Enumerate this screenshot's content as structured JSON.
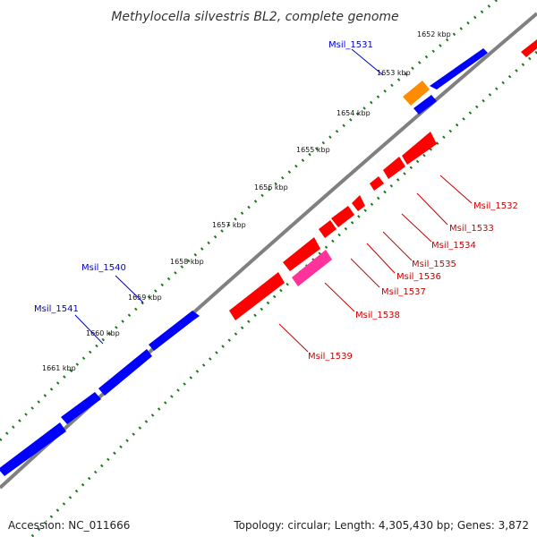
{
  "title": "Methylocella silvestris BL2, complete genome",
  "colors": {
    "background": "#ffffff",
    "backbone": "#808080",
    "ticks": "#1a7a1a",
    "forward_gene": "#0000ff",
    "reverse_gene": "#ff0000",
    "orange_gene": "#ff8c00",
    "pink_gene": "#ff3399",
    "label_blue": "#0000cc",
    "label_red": "#cc0000"
  },
  "kbp_labels": [
    "1652 kbp",
    "1653 kbp",
    "1654 kbp",
    "1655 kbp",
    "1656 kbp",
    "1657 kbp",
    "1658 kbp",
    "1659 kbp",
    "1660 kbp",
    "1661 kbp"
  ],
  "gene_labels": {
    "blue": [
      "Msil_1531",
      "Msil_1540",
      "Msil_1541"
    ],
    "red": [
      "Msil_1532",
      "Msil_1533",
      "Msil_1534",
      "Msil_1535",
      "Msil_1536",
      "Msil_1537",
      "Msil_1538",
      "Msil_1539"
    ]
  },
  "footer": {
    "accession": "Accession: NC_011666",
    "topology": "Topology: circular; Length: 4,305,430 bp; Genes: 3,872"
  }
}
